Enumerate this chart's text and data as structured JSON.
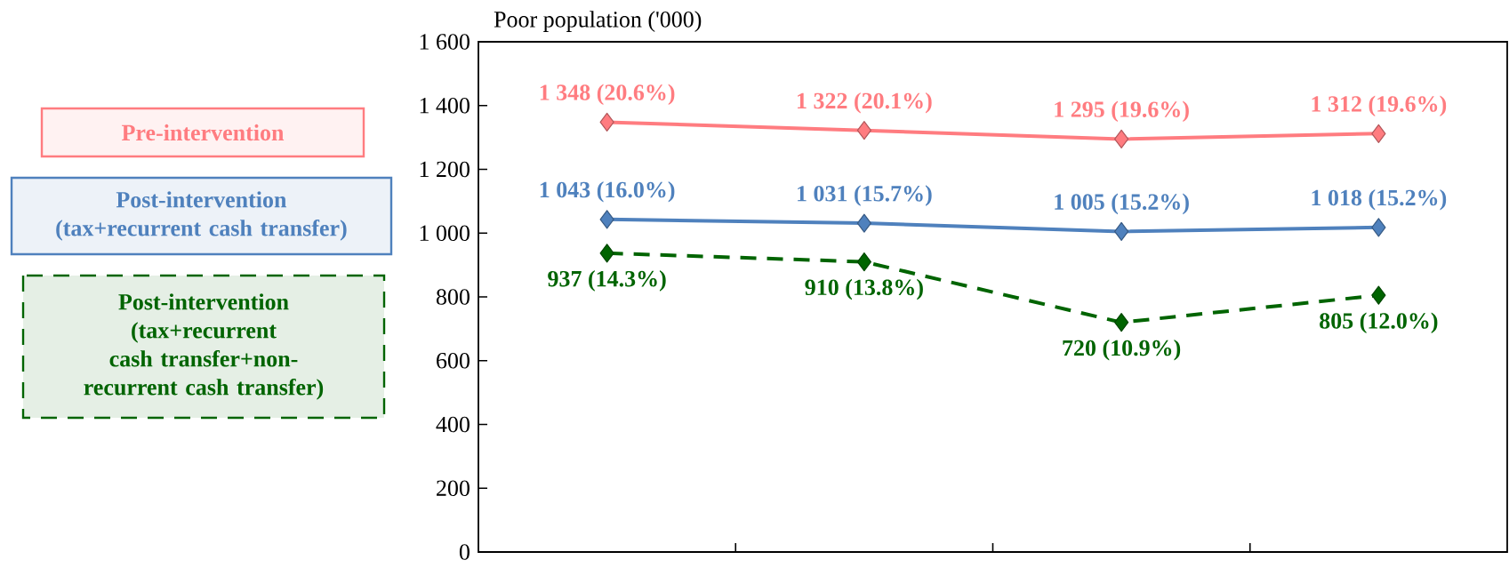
{
  "chart_data": {
    "type": "line",
    "ylabel": "Poor population ('000)",
    "categories": [
      null,
      null,
      null,
      null
    ],
    "ylim": [
      0,
      1600
    ],
    "yticks": [
      0,
      200,
      400,
      600,
      800,
      {
        "value": 1000,
        "label": "1 000"
      },
      {
        "value": 1200,
        "label": "1 200"
      },
      {
        "value": 1400,
        "label": "1 400"
      },
      {
        "value": 1600,
        "label": "1 600"
      }
    ],
    "marker": "diamond",
    "legend": "left",
    "series": [
      {
        "name": "Pre-intervention",
        "color": "#ff7c80",
        "values": [
          1348,
          1322,
          1295,
          1312
        ],
        "value_labels": [
          "1 348 (20.6%)",
          "1 322 (20.1%)",
          "1 295 (19.6%)",
          "1 312 (19.6%)"
        ]
      },
      {
        "name": "Post-intervention (tax+recurrent cash transfer)",
        "color": "#4f81bd",
        "values": [
          1043,
          1031,
          1005,
          1018
        ],
        "value_labels": [
          "1 043 (16.0%)",
          "1 031 (15.7%)",
          "1 005 (15.2%)",
          "1 018 (15.2%)"
        ]
      },
      {
        "name": "Post-intervention (tax+recurrent cash transfer+non-recurrent cash transfer)",
        "color": "#006400",
        "line_style": "dashed",
        "values": [
          937,
          910,
          720,
          805
        ],
        "value_labels": [
          "937 (14.3%)",
          "910 (13.8%)",
          "720 (10.9%)",
          "805 (12.0%)"
        ]
      }
    ]
  }
}
